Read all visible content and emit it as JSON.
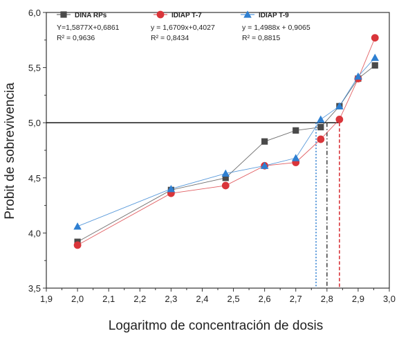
{
  "chart_data": {
    "type": "line",
    "xlabel": "Logaritmo de concentración de dosis",
    "ylabel": "Probit de sobrevivencia",
    "xlim": [
      1.9,
      3.0
    ],
    "ylim": [
      3.5,
      6.0
    ],
    "xticks": [
      "1,9",
      "2,0",
      "2,1",
      "2,2",
      "2,3",
      "2,4",
      "2,5",
      "2,6",
      "2,7",
      "2,8",
      "2,9",
      "3,0"
    ],
    "yticks": [
      "3,5",
      "4,0",
      "4,5",
      "5,0",
      "5,5",
      "6,0"
    ],
    "grid": false,
    "legend_position": "top",
    "series": [
      {
        "name": "DINA RPs",
        "equation": "Y=1,5877X+0,6861",
        "r2_label": "R² = 0,9636",
        "color": "#4a4a4a",
        "marker": "square",
        "x": [
          2.0,
          2.3,
          2.475,
          2.6,
          2.7,
          2.78,
          2.84,
          2.9,
          2.954
        ],
        "y": [
          3.92,
          4.39,
          4.5,
          4.83,
          4.93,
          4.96,
          5.15,
          5.4,
          5.52
        ],
        "intercept_x": 2.8
      },
      {
        "name": "IDIAP T-7",
        "equation": "y = 1,6709x+0,4027",
        "r2_label": "R² = 0,8434",
        "color": "#d9353a",
        "marker": "circle",
        "x": [
          2.0,
          2.3,
          2.475,
          2.6,
          2.7,
          2.78,
          2.84,
          2.9,
          2.954
        ],
        "y": [
          3.89,
          4.36,
          4.43,
          4.61,
          4.64,
          4.85,
          5.03,
          5.4,
          5.77
        ],
        "intercept_x": 2.84
      },
      {
        "name": "IDIAP T-9",
        "equation": "y = 1,4988x + 0,9065",
        "r2_label": "R² = 0,8815",
        "color": "#2e7fd1",
        "marker": "triangle",
        "x": [
          2.0,
          2.3,
          2.475,
          2.6,
          2.7,
          2.78,
          2.84,
          2.9,
          2.954
        ],
        "y": [
          4.06,
          4.4,
          4.54,
          4.61,
          4.68,
          5.03,
          5.15,
          5.42,
          5.59
        ],
        "intercept_x": 2.765
      }
    ],
    "reference_line": {
      "y": 5.0,
      "x_start": 1.9,
      "x_end": 2.84,
      "color": "#000000"
    }
  }
}
